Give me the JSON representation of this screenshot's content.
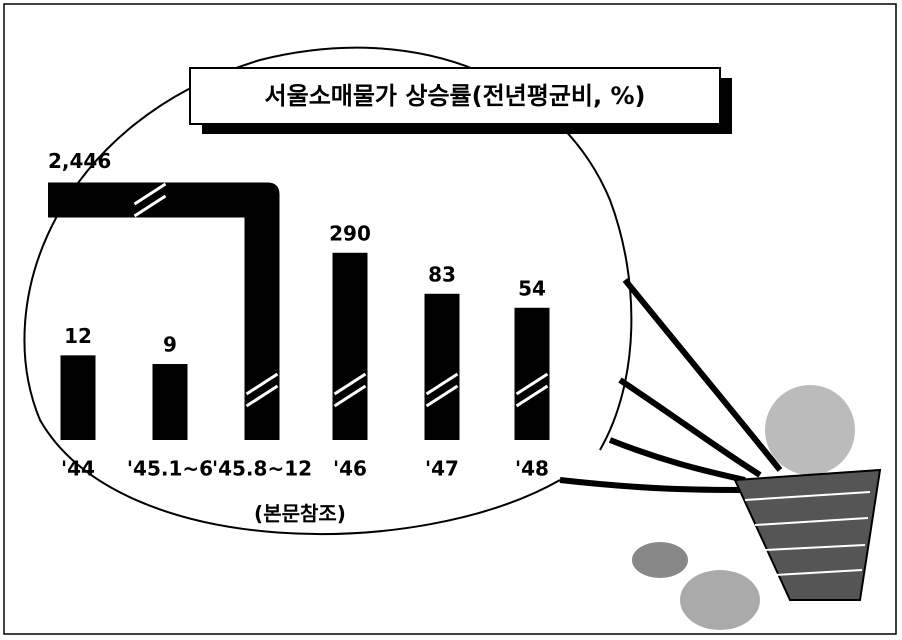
{
  "chart_data": {
    "type": "bar",
    "title": "서울소매물가 상승률(전년평균비, %)",
    "categories": [
      "'44",
      "'45.1~6",
      "'45.8~12",
      "'46",
      "'47",
      "'48"
    ],
    "values": [
      12,
      9,
      2446,
      290,
      83,
      54
    ],
    "value_labels": [
      "12",
      "9",
      "2,446",
      "290",
      "83",
      "54"
    ],
    "annotation": "(본문참조)",
    "color": "#000000"
  }
}
